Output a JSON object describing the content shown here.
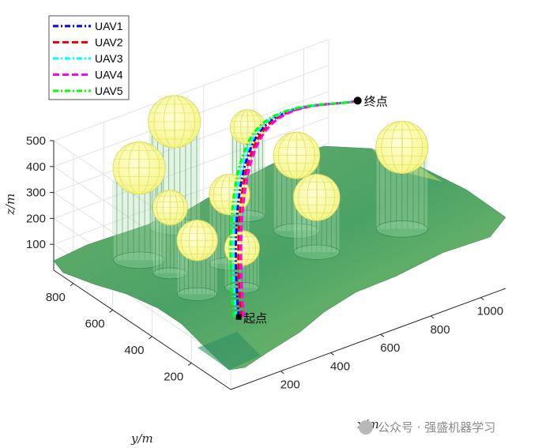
{
  "chart_data": {
    "type": "3d-surface-paths",
    "zlabel": "z/m",
    "xlabel": "x/m",
    "ylabel": "y/m",
    "x_ticks": [
      200,
      400,
      600,
      800,
      1000
    ],
    "y_ticks": [
      200,
      400,
      600,
      800
    ],
    "z_ticks": [
      100,
      200,
      300,
      400,
      500
    ],
    "xlim": [
      0,
      1100
    ],
    "ylim": [
      0,
      900
    ],
    "zlim": [
      0,
      500
    ],
    "grid": true,
    "legend": {
      "placement": "top-left",
      "entries": [
        {
          "name": "UAV1",
          "color": "#0000ff",
          "style": "dashdot"
        },
        {
          "name": "UAV2",
          "color": "#ff0000",
          "style": "dashed"
        },
        {
          "name": "UAV3",
          "color": "#00ffff",
          "style": "dashdot"
        },
        {
          "name": "UAV4",
          "color": "#ff00ff",
          "style": "dashed"
        },
        {
          "name": "UAV5",
          "color": "#00ff00",
          "style": "dashdot"
        }
      ]
    },
    "annotations": {
      "start": "起点",
      "end": "终点"
    },
    "start_point": {
      "x": 150,
      "y": 150,
      "z": 150
    },
    "end_point": {
      "x": 980,
      "y": 600,
      "z": 460
    },
    "obstacles": [
      {
        "x": 420,
        "y": 820,
        "r": 90,
        "h": 430
      },
      {
        "x": 200,
        "y": 720,
        "r": 90,
        "h": 380
      },
      {
        "x": 230,
        "y": 600,
        "r": 60,
        "h": 290
      },
      {
        "x": 220,
        "y": 450,
        "r": 70,
        "h": 240
      },
      {
        "x": 420,
        "y": 540,
        "r": 70,
        "h": 300
      },
      {
        "x": 360,
        "y": 400,
        "r": 60,
        "h": 190
      },
      {
        "x": 650,
        "y": 740,
        "r": 60,
        "h": 380
      },
      {
        "x": 720,
        "y": 580,
        "r": 80,
        "h": 320
      },
      {
        "x": 690,
        "y": 440,
        "r": 80,
        "h": 240
      },
      {
        "x": 1000,
        "y": 400,
        "r": 90,
        "h": 340
      }
    ],
    "surface_color_low": "#1f8f6a",
    "surface_color_high": "#e5e76a",
    "obstacle_color": "#ffff80"
  },
  "watermark": "公众号 · 强盛机器学习"
}
